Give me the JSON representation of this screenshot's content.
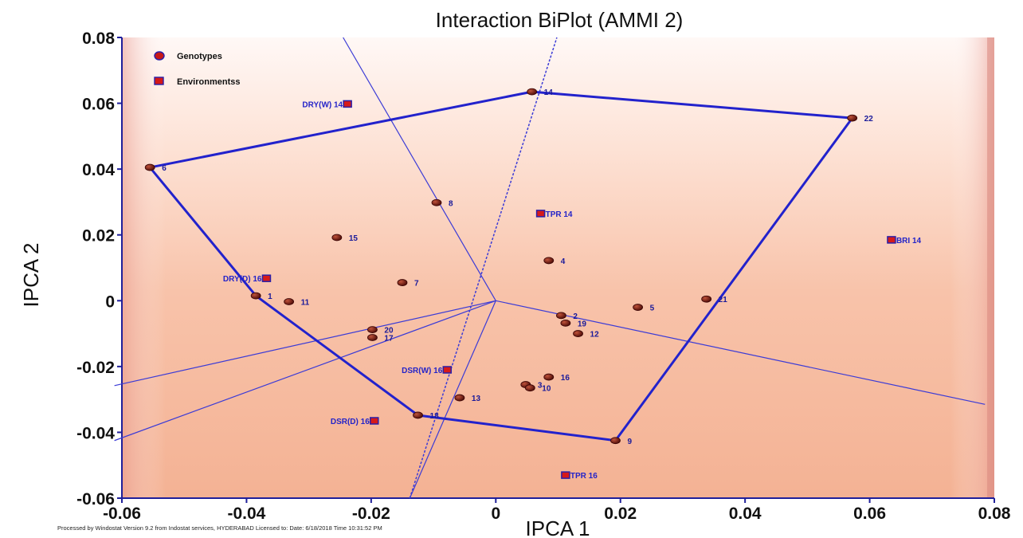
{
  "chart_data": {
    "type": "scatter",
    "title": "Interaction BiPlot (AMMI 2)",
    "xlabel": "IPCA 1",
    "ylabel": "IPCA 2",
    "xlim": [
      -0.06,
      0.08
    ],
    "ylim": [
      -0.06,
      0.08
    ],
    "x_ticks": [
      "-0.06",
      "-0.04",
      "-0.02",
      "0",
      "0.02",
      "0.04",
      "0.06",
      "0.08"
    ],
    "y_ticks": [
      "0.08",
      "0.06",
      "0.04",
      "0.02",
      "0",
      "-0.02",
      "-0.04",
      "-0.06"
    ],
    "legend": {
      "placement": "top-left",
      "items": [
        {
          "name": "Genotypes",
          "marker": "circle"
        },
        {
          "name": "Environmentss",
          "marker": "square"
        }
      ]
    },
    "genotypes": [
      {
        "label": "1",
        "x": -0.0385,
        "y": 0.0015
      },
      {
        "label": "2",
        "x": 0.0105,
        "y": -0.0045
      },
      {
        "label": "3",
        "x": 0.0048,
        "y": -0.0255
      },
      {
        "label": "4",
        "x": 0.0085,
        "y": 0.0122
      },
      {
        "label": "5",
        "x": 0.0228,
        "y": -0.002
      },
      {
        "label": "6",
        "x": -0.0555,
        "y": 0.0405
      },
      {
        "label": "7",
        "x": -0.015,
        "y": 0.0055
      },
      {
        "label": "8",
        "x": -0.0095,
        "y": 0.0298
      },
      {
        "label": "9",
        "x": 0.0192,
        "y": -0.0425
      },
      {
        "label": "10",
        "x": 0.0055,
        "y": -0.0265
      },
      {
        "label": "11",
        "x": -0.0332,
        "y": -0.0003
      },
      {
        "label": "12",
        "x": 0.0132,
        "y": -0.01
      },
      {
        "label": "13",
        "x": -0.0058,
        "y": -0.0295
      },
      {
        "label": "14",
        "x": 0.0058,
        "y": 0.0635
      },
      {
        "label": "15",
        "x": -0.0255,
        "y": 0.0192
      },
      {
        "label": "16",
        "x": 0.0085,
        "y": -0.0232
      },
      {
        "label": "17",
        "x": -0.0198,
        "y": -0.0112
      },
      {
        "label": "18",
        "x": -0.0125,
        "y": -0.0348
      },
      {
        "label": "19",
        "x": 0.0112,
        "y": -0.0068
      },
      {
        "label": "20",
        "x": -0.0198,
        "y": -0.0088
      },
      {
        "label": "21",
        "x": 0.0338,
        "y": 0.0005
      },
      {
        "label": "22",
        "x": 0.0572,
        "y": 0.0555
      }
    ],
    "environments": [
      {
        "label": "DRY(W) 14",
        "x": -0.0238,
        "y": 0.0598
      },
      {
        "label": "TPR 14",
        "x": 0.0072,
        "y": 0.0265
      },
      {
        "label": "BRI 14",
        "x": 0.0635,
        "y": 0.0185
      },
      {
        "label": "DRY(D) 16",
        "x": -0.0368,
        "y": 0.0068
      },
      {
        "label": "DSR(W) 16",
        "x": -0.0078,
        "y": -0.021
      },
      {
        "label": "DSR(D) 16",
        "x": -0.0195,
        "y": -0.0365
      },
      {
        "label": "TPR 16",
        "x": 0.0112,
        "y": -0.053
      }
    ],
    "polygon_vertices": [
      "14",
      "22",
      "9",
      "18",
      "1",
      "6"
    ],
    "sector_rays_from_origin": [
      {
        "x": -0.0612,
        "y": -0.0258
      },
      {
        "x": -0.0612,
        "y": -0.0425
      },
      {
        "x": -0.0138,
        "y": -0.06
      },
      {
        "x": -0.0245,
        "y": 0.08
      },
      {
        "x": 0.0785,
        "y": -0.0315
      }
    ],
    "dashed_axis_line": [
      {
        "x": -0.0138,
        "y": -0.06
      },
      {
        "x": 0.0098,
        "y": 0.08
      }
    ]
  },
  "footer_text": "Processed by Windostat Version 9.2 from Indostat services, HYDERABAD Licensed to: Date: 6/18/2018 Time 10:31:52 PM"
}
